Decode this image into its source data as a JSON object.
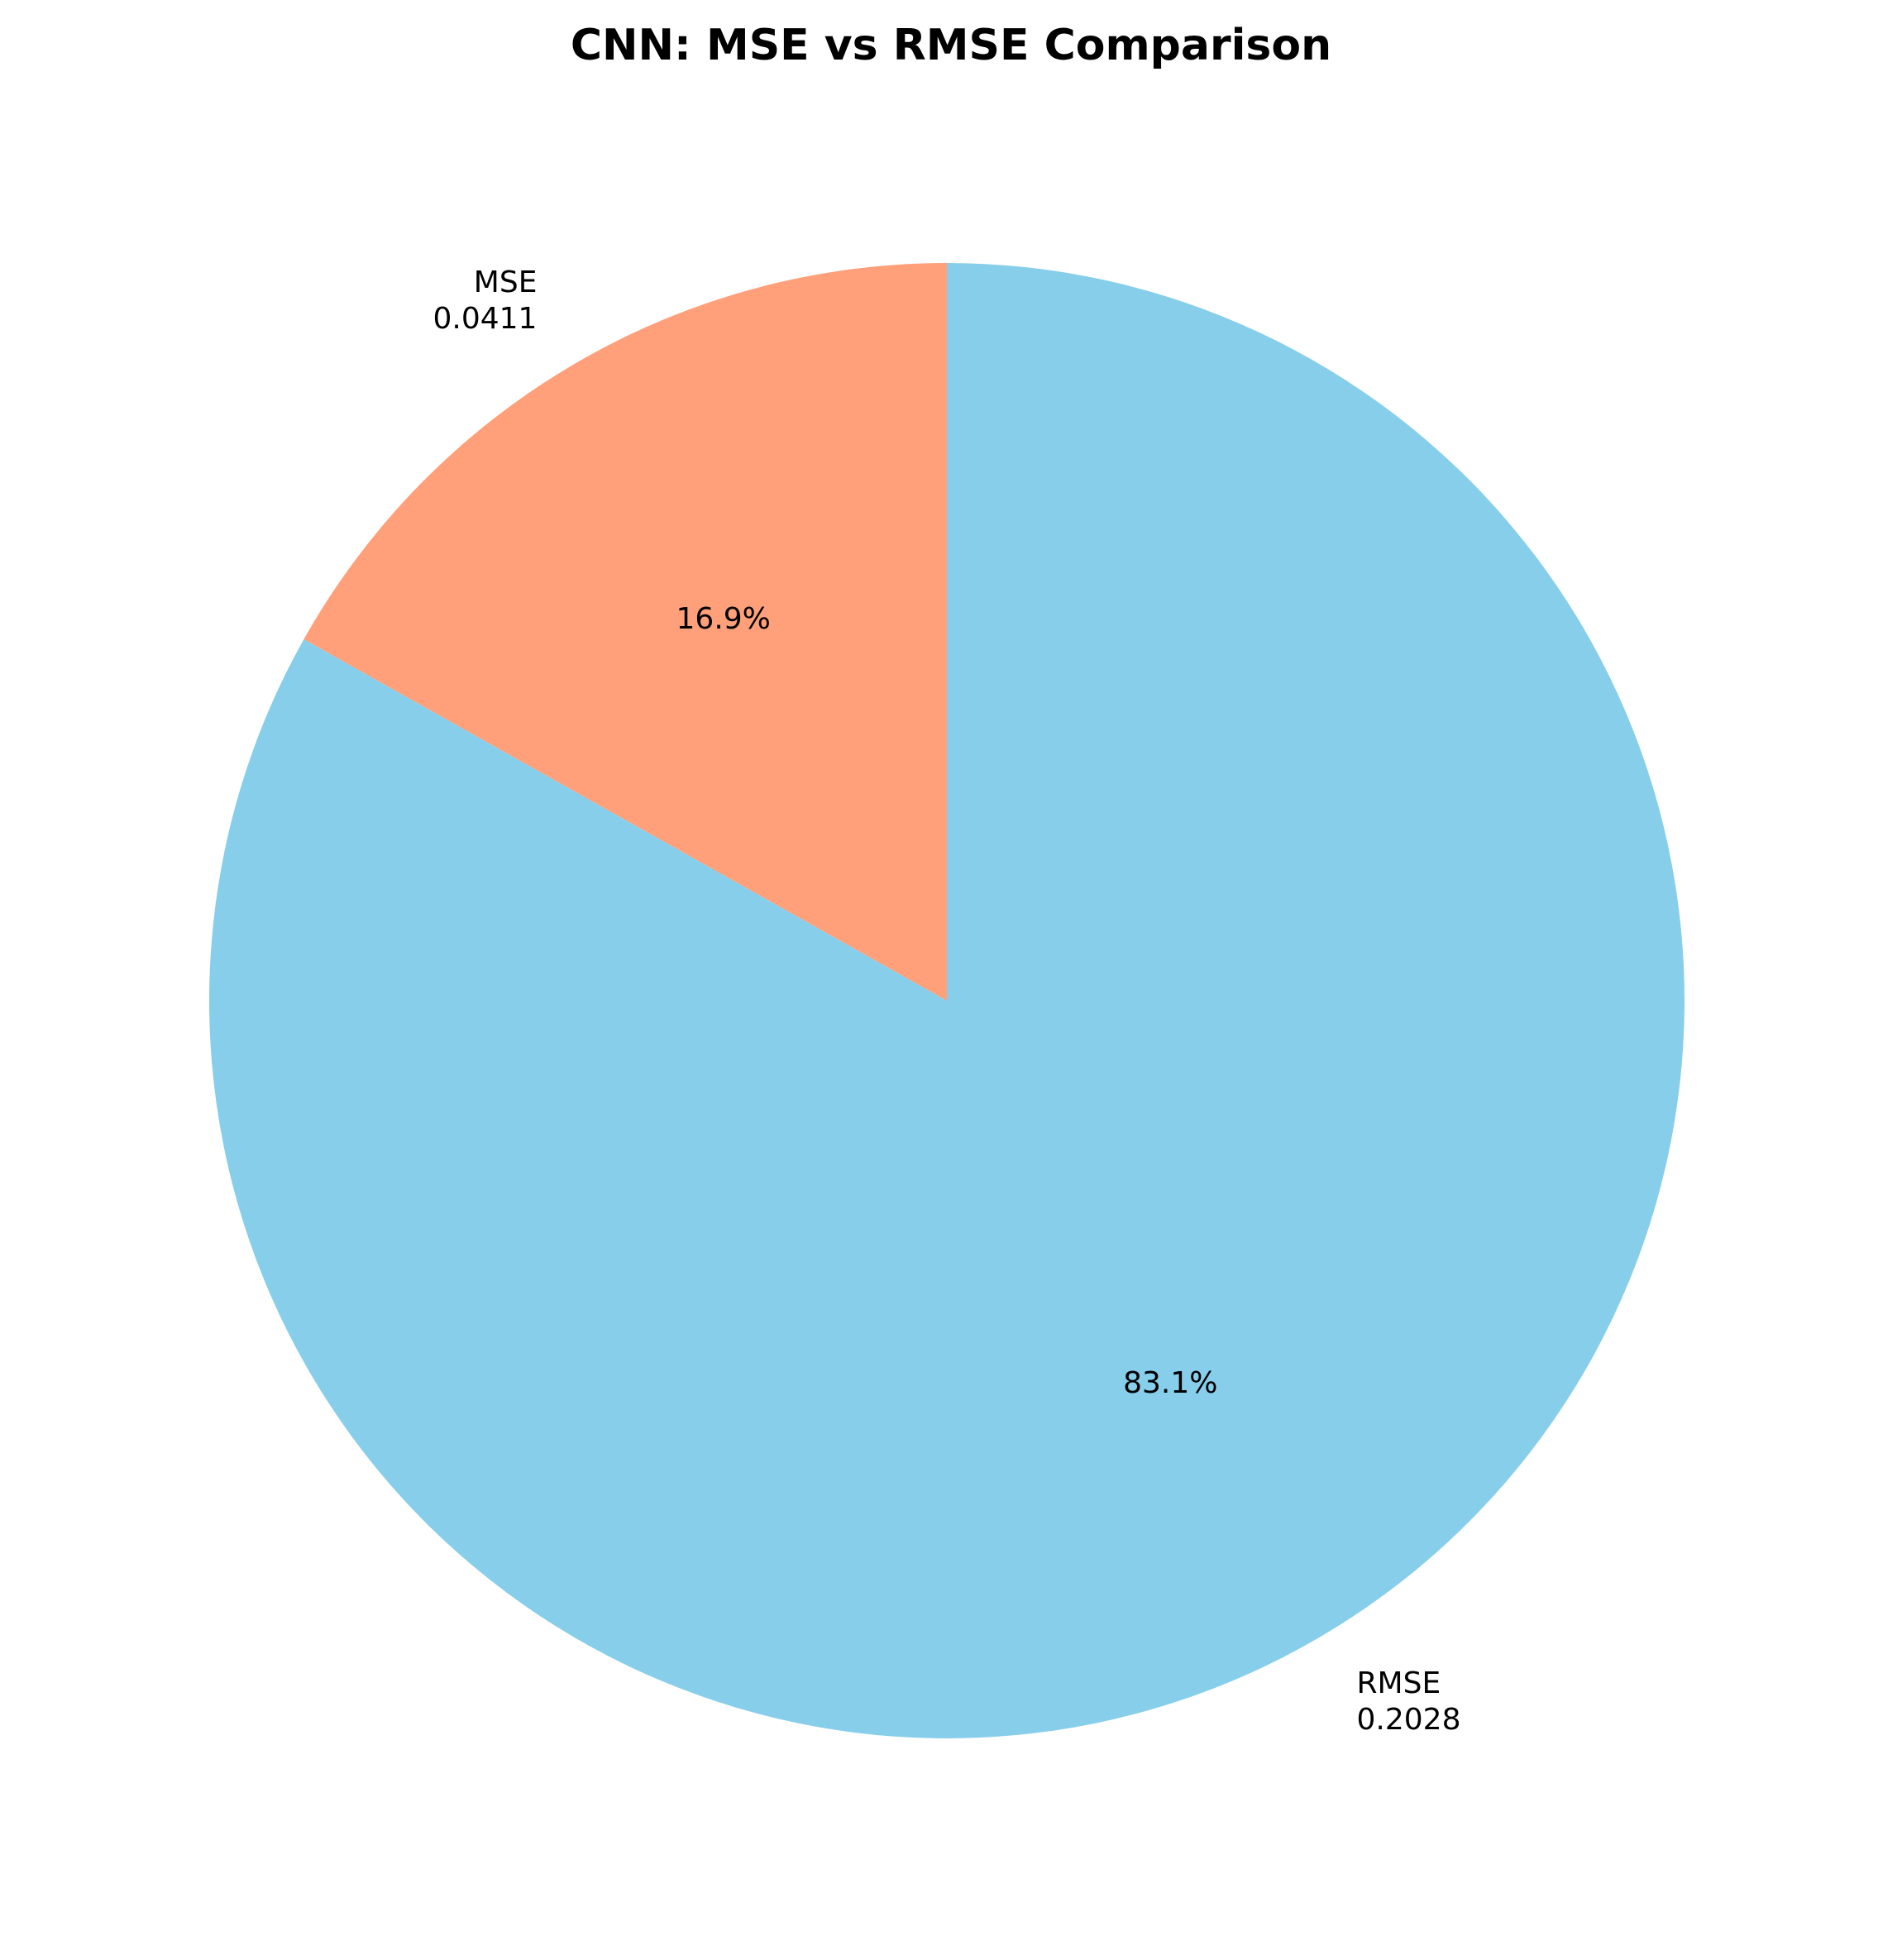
{
  "chart_data": {
    "type": "pie",
    "title": "CNN: MSE vs RMSE Comparison",
    "categories": [
      "MSE",
      "RMSE"
    ],
    "values": [
      0.0411,
      0.2028
    ],
    "value_labels": [
      "0.0411",
      "0.2028"
    ],
    "percent_labels": [
      "16.9%",
      "83.1%"
    ],
    "colors": [
      "#FFA07A",
      "#87CEEB"
    ],
    "start_angle_deg": 90,
    "direction": "counterclockwise"
  }
}
